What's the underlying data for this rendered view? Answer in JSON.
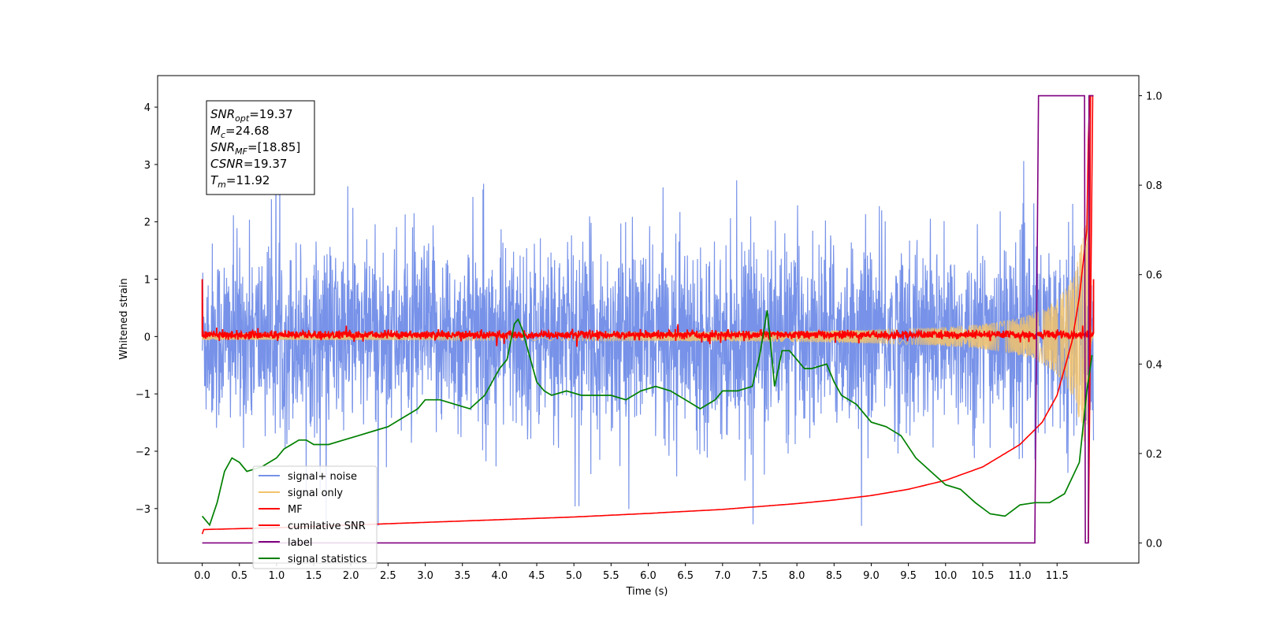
{
  "chart_data": {
    "type": "line",
    "xlabel": "Time (s)",
    "ylabel": "Whitened strain",
    "xlim": [
      -0.6,
      12.6
    ],
    "ylim": [
      -3.95,
      4.55
    ],
    "ylim_right": [
      -0.045,
      1.045
    ],
    "xticks": [
      "0.0",
      "0.5",
      "1.0",
      "1.5",
      "2.0",
      "2.5",
      "3.0",
      "3.5",
      "4.0",
      "4.5",
      "5.0",
      "5.5",
      "6.0",
      "6.5",
      "7.0",
      "7.5",
      "8.0",
      "8.5",
      "9.0",
      "9.5",
      "10.0",
      "10.5",
      "11.0",
      "11.5"
    ],
    "yticks_left": [
      "−3",
      "−2",
      "−1",
      "0",
      "1",
      "2",
      "3",
      "4"
    ],
    "yticks_right": [
      "0.0",
      "0.2",
      "0.4",
      "0.6",
      "0.8",
      "1.0"
    ],
    "annotation": [
      {
        "base": "SNR",
        "sub": "opt",
        "value": "=19.37"
      },
      {
        "base": "M",
        "sub": "c",
        "value": "=24.68"
      },
      {
        "base": "SNR",
        "sub": "MF",
        "value": "=[18.85]"
      },
      {
        "base": "CSNR",
        "sub": "",
        "value": "=19.37"
      },
      {
        "base": "T",
        "sub": "m",
        "value": "=11.92"
      }
    ],
    "legend_position": "lower-left",
    "series": [
      {
        "name": "signal+ noise",
        "color": "#7792e8",
        "axis": "left",
        "kind": "noise",
        "time_range": [
          0.0,
          11.99
        ],
        "mean": 0.0,
        "std": 0.8,
        "peak_range": [
          -3.3,
          3.6
        ]
      },
      {
        "name": "signal only",
        "color": "#f2c36b",
        "axis": "left",
        "kind": "chirp",
        "time_range": [
          0.0,
          11.99
        ],
        "amplitude_start": 0.05,
        "amplitude_end": 2.5,
        "merger_time": 11.92
      },
      {
        "name": "MF",
        "color": "#ff0000",
        "axis": "left",
        "kind": "matched-filter",
        "time_range": [
          0.0,
          11.99
        ],
        "baseline": 0.03,
        "points": [
          [
            0.0,
            1.0
          ],
          [
            0.05,
            0.05
          ],
          [
            11.9,
            0.0
          ],
          [
            11.93,
            0.3
          ],
          [
            11.97,
            0.0
          ],
          [
            11.99,
            1.0
          ]
        ]
      },
      {
        "name": "cumilative SNR",
        "color": "#ff0000",
        "axis": "right",
        "x": [
          0.0,
          0.02,
          1.0,
          2.0,
          3.0,
          4.0,
          5.0,
          6.0,
          7.0,
          8.0,
          8.5,
          9.0,
          9.5,
          10.0,
          10.5,
          11.0,
          11.3,
          11.5,
          11.7,
          11.8,
          11.9,
          11.93,
          11.99
        ],
        "y": [
          0.02,
          0.03,
          0.034,
          0.04,
          0.046,
          0.052,
          0.058,
          0.066,
          0.075,
          0.088,
          0.096,
          0.106,
          0.12,
          0.14,
          0.17,
          0.22,
          0.27,
          0.33,
          0.45,
          0.55,
          0.7,
          1.0,
          1.0
        ]
      },
      {
        "name": "label",
        "color": "#800080",
        "axis": "right",
        "x": [
          0.0,
          11.2,
          11.25,
          11.87,
          11.88,
          11.92,
          11.93,
          11.99
        ],
        "y": [
          0.0,
          0.0,
          1.0,
          1.0,
          0.0,
          0.0,
          1.0,
          1.0
        ]
      },
      {
        "name": "signal statistics",
        "color": "#008000",
        "axis": "right",
        "x": [
          0.0,
          0.1,
          0.2,
          0.3,
          0.4,
          0.5,
          0.6,
          0.8,
          1.0,
          1.1,
          1.2,
          1.3,
          1.4,
          1.5,
          1.7,
          1.9,
          2.1,
          2.3,
          2.5,
          2.7,
          2.9,
          3.0,
          3.2,
          3.4,
          3.6,
          3.8,
          4.0,
          4.1,
          4.2,
          4.25,
          4.3,
          4.4,
          4.5,
          4.6,
          4.7,
          4.9,
          5.1,
          5.3,
          5.5,
          5.7,
          5.9,
          6.1,
          6.3,
          6.5,
          6.7,
          6.9,
          7.0,
          7.2,
          7.4,
          7.5,
          7.6,
          7.65,
          7.7,
          7.8,
          7.9,
          8.0,
          8.1,
          8.2,
          8.4,
          8.5,
          8.6,
          8.8,
          9.0,
          9.2,
          9.4,
          9.6,
          9.8,
          10.0,
          10.2,
          10.4,
          10.6,
          10.8,
          11.0,
          11.2,
          11.4,
          11.6,
          11.8,
          11.9,
          11.97
        ],
        "y": [
          0.06,
          0.04,
          0.09,
          0.16,
          0.19,
          0.18,
          0.16,
          0.17,
          0.19,
          0.21,
          0.22,
          0.23,
          0.23,
          0.22,
          0.22,
          0.23,
          0.24,
          0.25,
          0.26,
          0.28,
          0.3,
          0.32,
          0.32,
          0.31,
          0.3,
          0.33,
          0.39,
          0.41,
          0.49,
          0.5,
          0.48,
          0.42,
          0.36,
          0.34,
          0.33,
          0.34,
          0.33,
          0.33,
          0.33,
          0.32,
          0.34,
          0.35,
          0.34,
          0.32,
          0.3,
          0.32,
          0.34,
          0.34,
          0.35,
          0.42,
          0.52,
          0.44,
          0.35,
          0.43,
          0.43,
          0.41,
          0.39,
          0.39,
          0.4,
          0.36,
          0.33,
          0.31,
          0.27,
          0.26,
          0.24,
          0.19,
          0.16,
          0.13,
          0.12,
          0.09,
          0.065,
          0.06,
          0.085,
          0.09,
          0.09,
          0.11,
          0.18,
          0.34,
          0.42
        ]
      }
    ]
  }
}
